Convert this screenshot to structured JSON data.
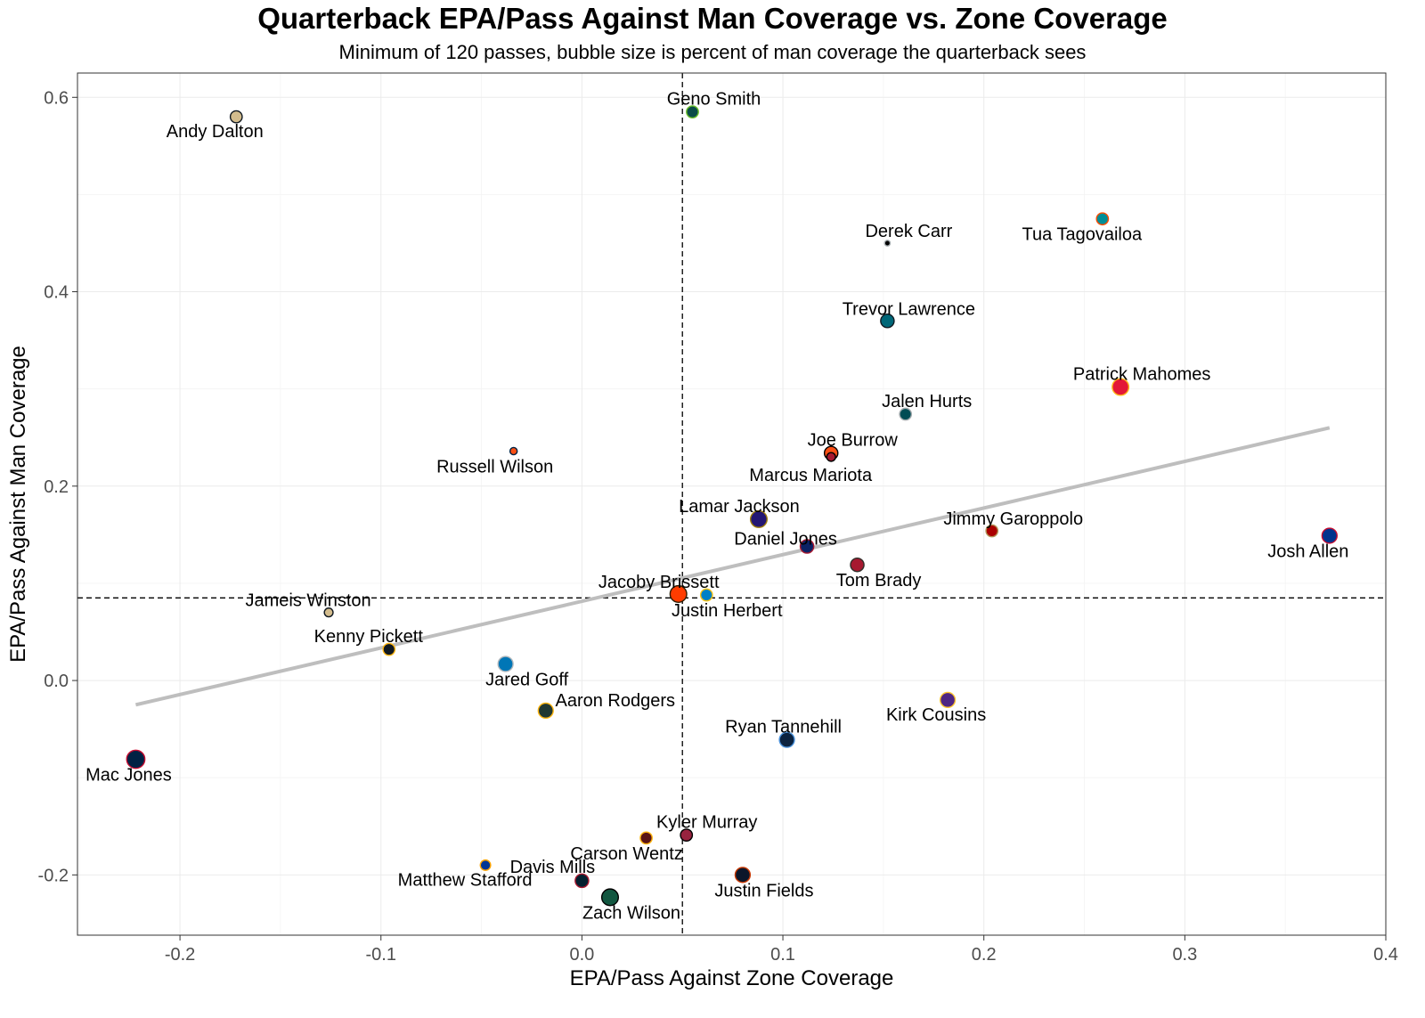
{
  "title": "Quarterback EPA/Pass Against Man Coverage vs. Zone Coverage",
  "subtitle": "Minimum of 120 passes, bubble size is percent of man coverage the quarterback sees",
  "chart_data": {
    "type": "scatter",
    "xlabel": "EPA/Pass Against Zone Coverage",
    "ylabel": "EPA/Pass Against Man Coverage",
    "xlim": [
      -0.251,
      0.4
    ],
    "ylim": [
      -0.262,
      0.625
    ],
    "x_ticks": [
      -0.2,
      -0.1,
      0.0,
      0.1,
      0.2,
      0.3,
      0.4
    ],
    "x_tick_labels": [
      "-0.2",
      "-0.1",
      "0.0",
      "0.1",
      "0.2",
      "0.3",
      "0.4"
    ],
    "y_ticks": [
      -0.2,
      0.0,
      0.2,
      0.4,
      0.6
    ],
    "y_tick_labels": [
      "-0.2",
      "0.0",
      "0.2",
      "0.4",
      "0.6"
    ],
    "grid": true,
    "reference_lines": {
      "x_mean": 0.05,
      "y_mean": 0.085
    },
    "trend_line": {
      "x": [
        -0.222,
        0.372
      ],
      "y": [
        -0.025,
        0.26
      ],
      "color": "#bebebe"
    },
    "points": [
      {
        "name": "Andy Dalton",
        "x": -0.172,
        "y": 0.58,
        "size": 6,
        "fill": "#D3BC8D",
        "stroke": "#101820"
      },
      {
        "name": "Geno Smith",
        "x": 0.055,
        "y": 0.585,
        "size": 6,
        "fill": "#0B4C47",
        "stroke": "#69BE28"
      },
      {
        "name": "Derek Carr",
        "x": 0.152,
        "y": 0.45,
        "size": 2,
        "fill": "#000000",
        "stroke": "#A5ACAF"
      },
      {
        "name": "Tua Tagovailoa",
        "x": 0.259,
        "y": 0.475,
        "size": 6,
        "fill": "#008E97",
        "stroke": "#FC4C02"
      },
      {
        "name": "Trevor Lawrence",
        "x": 0.152,
        "y": 0.37,
        "size": 7,
        "fill": "#006778",
        "stroke": "#101820"
      },
      {
        "name": "Patrick Mahomes",
        "x": 0.268,
        "y": 0.302,
        "size": 9,
        "fill": "#E31837",
        "stroke": "#FFB81C"
      },
      {
        "name": "Jalen Hurts",
        "x": 0.161,
        "y": 0.274,
        "size": 6,
        "fill": "#004C54",
        "stroke": "#A5ACAF"
      },
      {
        "name": "Joe Burrow",
        "x": 0.124,
        "y": 0.234,
        "size": 7,
        "fill": "#FB4F14",
        "stroke": "#000000"
      },
      {
        "name": "Marcus Mariota",
        "x": 0.124,
        "y": 0.23,
        "size": 4,
        "fill": "#A71930",
        "stroke": "#000000"
      },
      {
        "name": "Russell Wilson",
        "x": -0.034,
        "y": 0.236,
        "size": 3,
        "fill": "#FB4F14",
        "stroke": "#002244"
      },
      {
        "name": "Lamar Jackson",
        "x": 0.088,
        "y": 0.166,
        "size": 9,
        "fill": "#241773",
        "stroke": "#9E7C0C"
      },
      {
        "name": "Jimmy Garoppolo",
        "x": 0.204,
        "y": 0.154,
        "size": 6,
        "fill": "#AA0000",
        "stroke": "#B3995D"
      },
      {
        "name": "Daniel Jones",
        "x": 0.112,
        "y": 0.138,
        "size": 7,
        "fill": "#0B2265",
        "stroke": "#A71930"
      },
      {
        "name": "Josh Allen",
        "x": 0.372,
        "y": 0.149,
        "size": 8,
        "fill": "#00338D",
        "stroke": "#C60C30"
      },
      {
        "name": "Tom Brady",
        "x": 0.137,
        "y": 0.119,
        "size": 7,
        "fill": "#A71930",
        "stroke": "#322F2B"
      },
      {
        "name": "Jacoby Brissett",
        "x": 0.048,
        "y": 0.089,
        "size": 9,
        "fill": "#FF3C00",
        "stroke": "#311D00"
      },
      {
        "name": "Justin Herbert",
        "x": 0.062,
        "y": 0.088,
        "size": 6,
        "fill": "#0080C6",
        "stroke": "#FFC20E"
      },
      {
        "name": "Jameis Winston",
        "x": -0.126,
        "y": 0.07,
        "size": 4,
        "fill": "#D3BC8D",
        "stroke": "#101820"
      },
      {
        "name": "Kenny Pickett",
        "x": -0.096,
        "y": 0.032,
        "size": 6,
        "fill": "#101820",
        "stroke": "#FFB612"
      },
      {
        "name": "Jared Goff",
        "x": -0.038,
        "y": 0.017,
        "size": 8,
        "fill": "#0076B6",
        "stroke": "#B0B7BC"
      },
      {
        "name": "Aaron Rodgers",
        "x": -0.018,
        "y": -0.031,
        "size": 8,
        "fill": "#203731",
        "stroke": "#FFB612"
      },
      {
        "name": "Kirk Cousins",
        "x": 0.182,
        "y": -0.02,
        "size": 8,
        "fill": "#4F2683",
        "stroke": "#FFC62F"
      },
      {
        "name": "Ryan Tannehill",
        "x": 0.102,
        "y": -0.061,
        "size": 8,
        "fill": "#0C2340",
        "stroke": "#4B92DB"
      },
      {
        "name": "Mac Jones",
        "x": -0.222,
        "y": -0.081,
        "size": 10,
        "fill": "#002244",
        "stroke": "#C60C30"
      },
      {
        "name": "Kyler Murray",
        "x": 0.052,
        "y": -0.159,
        "size": 6,
        "fill": "#97233F",
        "stroke": "#000000"
      },
      {
        "name": "Carson Wentz",
        "x": 0.032,
        "y": -0.162,
        "size": 6,
        "fill": "#5A1414",
        "stroke": "#FFB612"
      },
      {
        "name": "Matthew Stafford",
        "x": -0.048,
        "y": -0.19,
        "size": 5,
        "fill": "#003594",
        "stroke": "#FFA300"
      },
      {
        "name": "Davis Mills",
        "x": 0.0,
        "y": -0.206,
        "size": 7,
        "fill": "#03202F",
        "stroke": "#A71930"
      },
      {
        "name": "Justin Fields",
        "x": 0.08,
        "y": -0.2,
        "size": 8,
        "fill": "#0B162A",
        "stroke": "#C83803"
      },
      {
        "name": "Zach Wilson",
        "x": 0.014,
        "y": -0.223,
        "size": 9,
        "fill": "#125740",
        "stroke": "#000000"
      }
    ]
  }
}
